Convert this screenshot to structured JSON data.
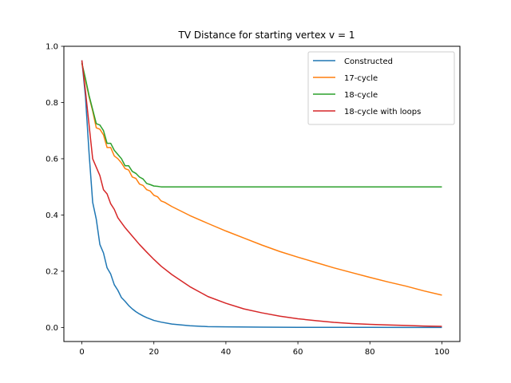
{
  "chart_data": {
    "type": "line",
    "title": "TV Distance for starting vertex v = 1",
    "xlabel": "",
    "ylabel": "",
    "xlim": [
      -5,
      105
    ],
    "ylim": [
      -0.05,
      1.0
    ],
    "xticks": [
      0,
      20,
      40,
      60,
      80,
      100
    ],
    "yticks": [
      0.0,
      0.2,
      0.4,
      0.6,
      0.8,
      1.0
    ],
    "xtick_labels": [
      "0",
      "20",
      "40",
      "60",
      "80",
      "100"
    ],
    "ytick_labels": [
      "0.0",
      "0.2",
      "0.4",
      "0.6",
      "0.8",
      "1.0"
    ],
    "grid": false,
    "legend_position": "top-right",
    "series": [
      {
        "name": "Constructed",
        "color": "#1f77b4",
        "points": [
          [
            0,
            0.95
          ],
          [
            1,
            0.82
          ],
          [
            2,
            0.62
          ],
          [
            3,
            0.445
          ],
          [
            4,
            0.385
          ],
          [
            5,
            0.295
          ],
          [
            6,
            0.265
          ],
          [
            7,
            0.212
          ],
          [
            8,
            0.19
          ],
          [
            9,
            0.152
          ],
          [
            10,
            0.132
          ],
          [
            11,
            0.106
          ],
          [
            12,
            0.093
          ],
          [
            13,
            0.078
          ],
          [
            14,
            0.066
          ],
          [
            15,
            0.056
          ],
          [
            16,
            0.048
          ],
          [
            17,
            0.041
          ],
          [
            18,
            0.035
          ],
          [
            19,
            0.03
          ],
          [
            20,
            0.025
          ],
          [
            22,
            0.019
          ],
          [
            25,
            0.012
          ],
          [
            30,
            0.006
          ],
          [
            35,
            0.003
          ],
          [
            40,
            0.002
          ],
          [
            50,
            0.001
          ],
          [
            60,
            0.0005
          ],
          [
            80,
            0.0002
          ],
          [
            100,
            0.0
          ]
        ]
      },
      {
        "name": "17-cycle",
        "color": "#ff7f0e",
        "points": [
          [
            0,
            0.94
          ],
          [
            1,
            0.88
          ],
          [
            2,
            0.82
          ],
          [
            3,
            0.77
          ],
          [
            4,
            0.71
          ],
          [
            5,
            0.705
          ],
          [
            6,
            0.685
          ],
          [
            7,
            0.64
          ],
          [
            8,
            0.64
          ],
          [
            9,
            0.61
          ],
          [
            10,
            0.6
          ],
          [
            11,
            0.585
          ],
          [
            12,
            0.565
          ],
          [
            13,
            0.56
          ],
          [
            14,
            0.535
          ],
          [
            15,
            0.53
          ],
          [
            16,
            0.51
          ],
          [
            17,
            0.505
          ],
          [
            18,
            0.49
          ],
          [
            19,
            0.485
          ],
          [
            20,
            0.47
          ],
          [
            21,
            0.465
          ],
          [
            22,
            0.45
          ],
          [
            23,
            0.445
          ],
          [
            25,
            0.43
          ],
          [
            30,
            0.398
          ],
          [
            35,
            0.37
          ],
          [
            40,
            0.343
          ],
          [
            45,
            0.318
          ],
          [
            50,
            0.293
          ],
          [
            55,
            0.27
          ],
          [
            60,
            0.25
          ],
          [
            65,
            0.231
          ],
          [
            70,
            0.212
          ],
          [
            75,
            0.195
          ],
          [
            80,
            0.178
          ],
          [
            85,
            0.162
          ],
          [
            90,
            0.147
          ],
          [
            95,
            0.13
          ],
          [
            100,
            0.115
          ]
        ]
      },
      {
        "name": "18-cycle",
        "color": "#2ca02c",
        "points": [
          [
            0,
            0.94
          ],
          [
            1,
            0.885
          ],
          [
            2,
            0.825
          ],
          [
            3,
            0.775
          ],
          [
            4,
            0.725
          ],
          [
            5,
            0.72
          ],
          [
            6,
            0.7
          ],
          [
            7,
            0.655
          ],
          [
            8,
            0.655
          ],
          [
            9,
            0.63
          ],
          [
            10,
            0.615
          ],
          [
            11,
            0.6
          ],
          [
            12,
            0.575
          ],
          [
            13,
            0.575
          ],
          [
            14,
            0.555
          ],
          [
            15,
            0.548
          ],
          [
            16,
            0.535
          ],
          [
            17,
            0.528
          ],
          [
            18,
            0.512
          ],
          [
            19,
            0.508
          ],
          [
            20,
            0.503
          ],
          [
            21,
            0.502
          ],
          [
            22,
            0.5
          ],
          [
            30,
            0.5
          ],
          [
            50,
            0.5
          ],
          [
            70,
            0.5
          ],
          [
            100,
            0.5
          ]
        ]
      },
      {
        "name": "18-cycle with loops",
        "color": "#d62728",
        "points": [
          [
            0,
            0.95
          ],
          [
            1,
            0.84
          ],
          [
            2,
            0.72
          ],
          [
            3,
            0.6
          ],
          [
            4,
            0.57
          ],
          [
            5,
            0.54
          ],
          [
            6,
            0.49
          ],
          [
            7,
            0.475
          ],
          [
            8,
            0.44
          ],
          [
            9,
            0.42
          ],
          [
            10,
            0.39
          ],
          [
            12,
            0.355
          ],
          [
            14,
            0.325
          ],
          [
            16,
            0.295
          ],
          [
            18,
            0.268
          ],
          [
            20,
            0.242
          ],
          [
            22,
            0.218
          ],
          [
            25,
            0.188
          ],
          [
            30,
            0.145
          ],
          [
            35,
            0.11
          ],
          [
            40,
            0.086
          ],
          [
            45,
            0.066
          ],
          [
            50,
            0.052
          ],
          [
            55,
            0.04
          ],
          [
            60,
            0.031
          ],
          [
            65,
            0.024
          ],
          [
            70,
            0.018
          ],
          [
            75,
            0.014
          ],
          [
            80,
            0.011
          ],
          [
            85,
            0.009
          ],
          [
            90,
            0.007
          ],
          [
            95,
            0.005
          ],
          [
            100,
            0.004
          ]
        ]
      }
    ]
  }
}
